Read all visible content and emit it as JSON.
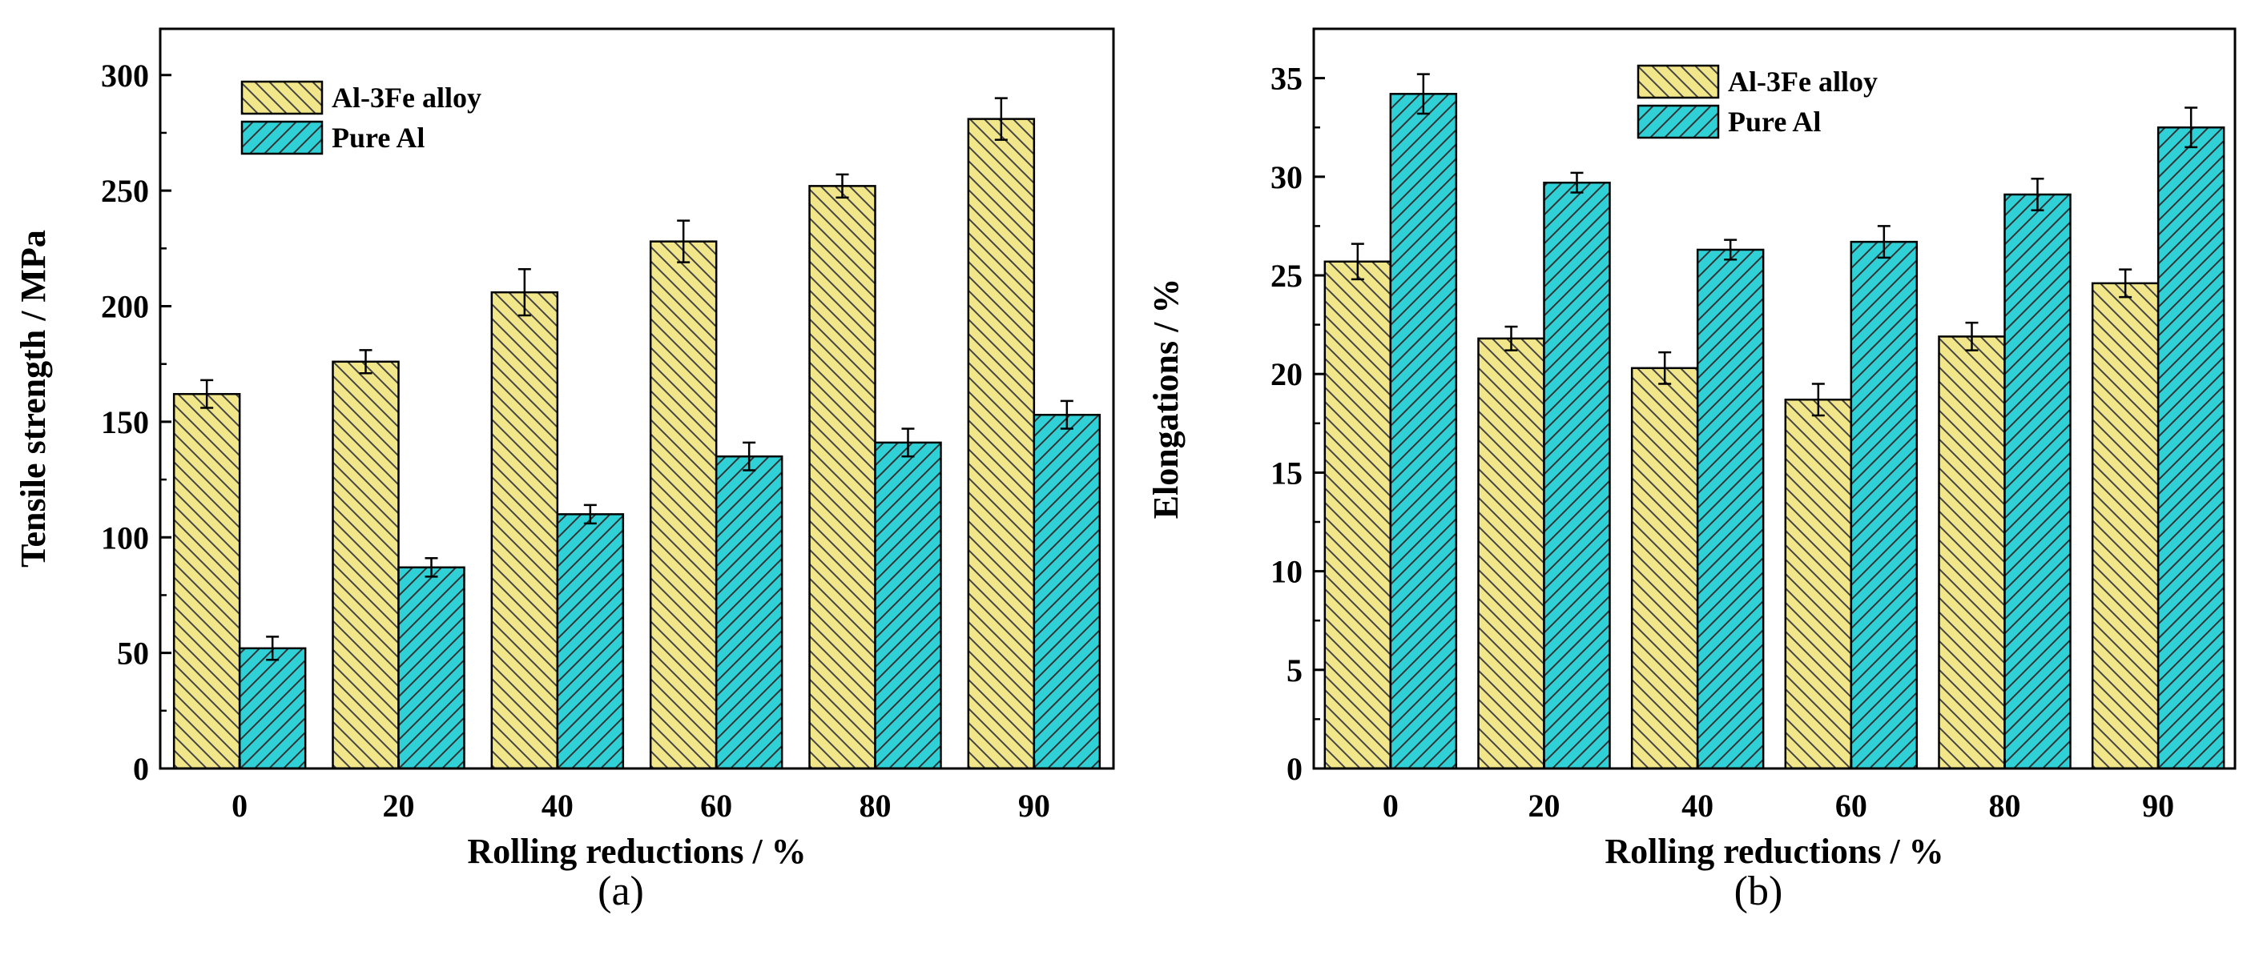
{
  "colors": {
    "alloy_fill": "#f2e68a",
    "pure_fill": "#2fd1d6",
    "hatch": "#333333",
    "axis": "#000000"
  },
  "chart_data": [
    {
      "type": "bar",
      "panel_label": "(a)",
      "categories": [
        "0",
        "20",
        "40",
        "60",
        "80",
        "90"
      ],
      "xlabel": "Rolling reductions / %",
      "ylabel": "Tensile strength / MPa",
      "ylim": [
        0,
        320
      ],
      "yticks": [
        0,
        50,
        100,
        150,
        200,
        250,
        300
      ],
      "legend_position": "top-left",
      "series": [
        {
          "name": "Al-3Fe alloy",
          "values": [
            162,
            176,
            206,
            228,
            252,
            281
          ],
          "errors": [
            6,
            5,
            10,
            9,
            5,
            9
          ]
        },
        {
          "name": "Pure Al",
          "values": [
            52,
            87,
            110,
            135,
            141,
            153
          ],
          "errors": [
            5,
            4,
            4,
            6,
            6,
            6
          ]
        }
      ]
    },
    {
      "type": "bar",
      "panel_label": "(b)",
      "categories": [
        "0",
        "20",
        "40",
        "60",
        "80",
        "90"
      ],
      "xlabel": "Rolling reductions / %",
      "ylabel": "Elongations / %",
      "ylim": [
        0,
        37.5
      ],
      "yticks": [
        0,
        5,
        10,
        15,
        20,
        25,
        30,
        35
      ],
      "legend_position": "top-center",
      "series": [
        {
          "name": "Al-3Fe alloy",
          "values": [
            25.7,
            21.8,
            20.3,
            18.7,
            21.9,
            24.6
          ],
          "errors": [
            0.9,
            0.6,
            0.8,
            0.8,
            0.7,
            0.7
          ]
        },
        {
          "name": "Pure Al",
          "values": [
            34.2,
            29.7,
            26.3,
            26.7,
            29.1,
            32.5
          ],
          "errors": [
            1.0,
            0.5,
            0.5,
            0.8,
            0.8,
            1.0
          ]
        }
      ]
    }
  ]
}
